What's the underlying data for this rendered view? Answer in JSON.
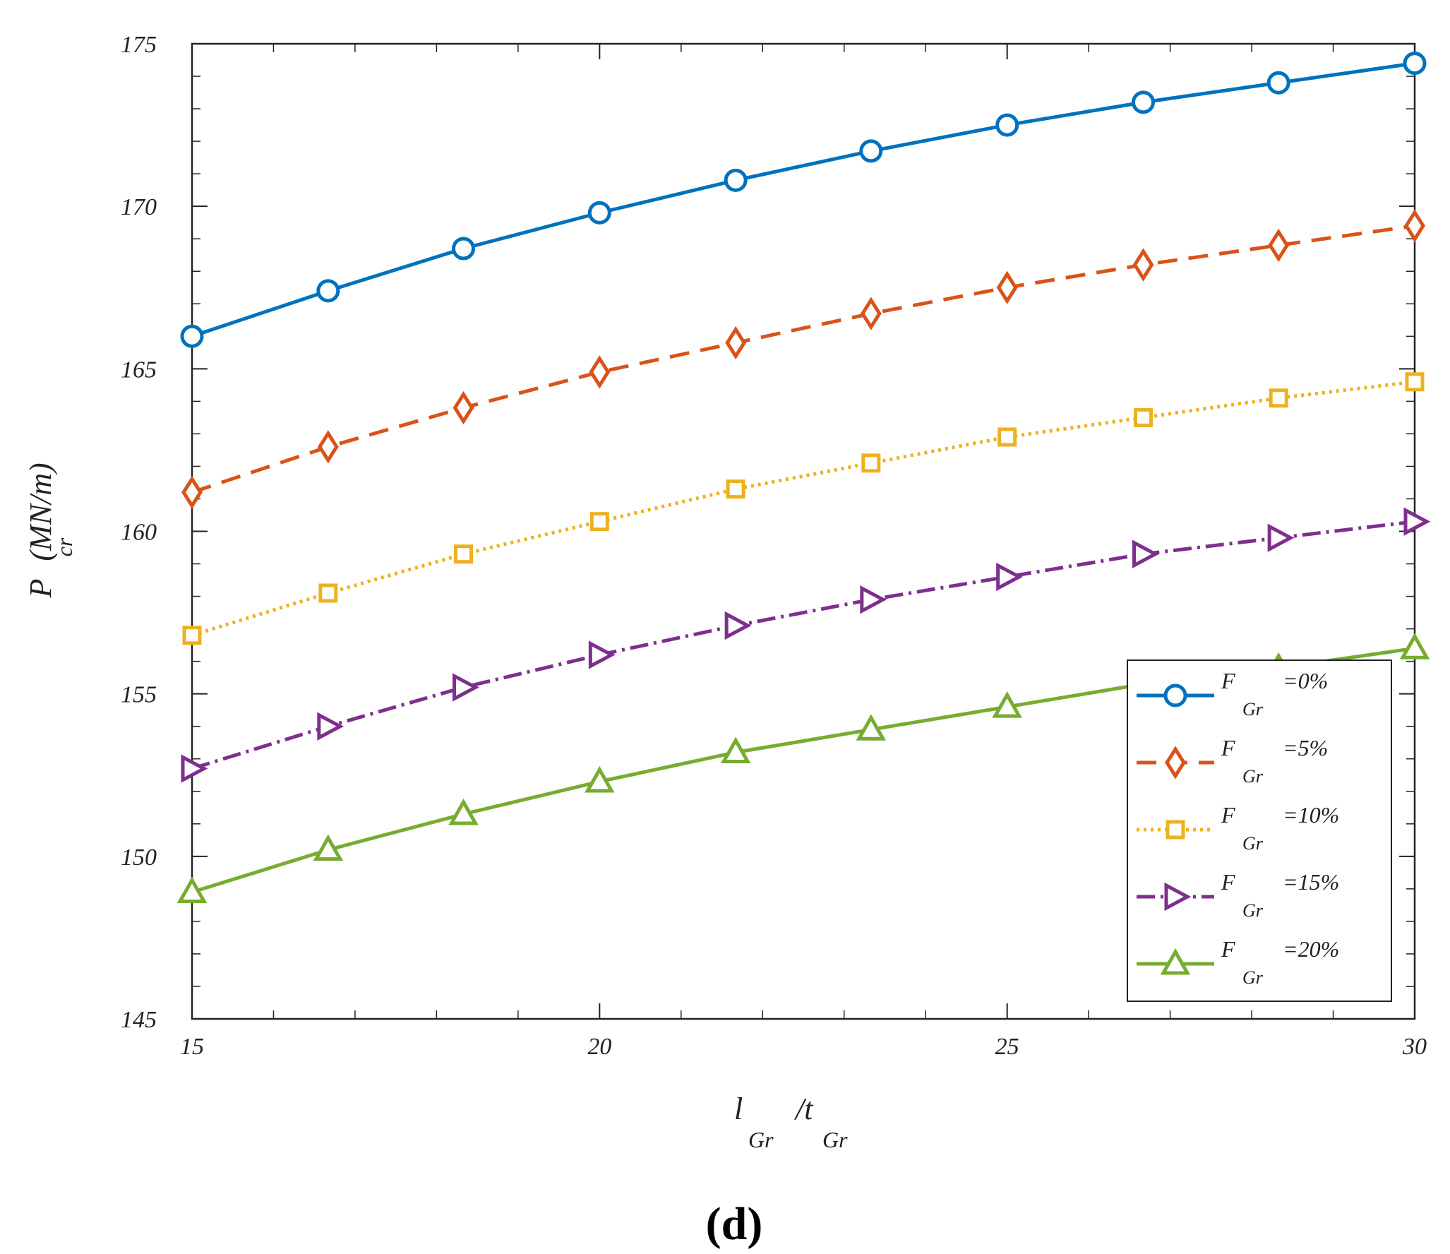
{
  "chart_data": {
    "type": "line",
    "title": "",
    "panel_label": "(d)",
    "xlabel": {
      "main1": "l",
      "sub1": "Gr",
      "main2": "/t",
      "sub2": "Gr"
    },
    "ylabel": {
      "main": "P",
      "sub": "cr",
      "unit": "(MN/m)"
    },
    "xlim": [
      15,
      30
    ],
    "ylim": [
      145,
      175
    ],
    "xticks": [
      15,
      20,
      25,
      30
    ],
    "yticks": [
      145,
      150,
      155,
      160,
      165,
      170,
      175
    ],
    "x": [
      15,
      16.67,
      18.33,
      20,
      21.67,
      23.33,
      25,
      26.67,
      28.33,
      30
    ],
    "legend_position": "lower-right",
    "series": [
      {
        "name": "F_Gr=0%",
        "legend_main": "F",
        "legend_sub": "Gr",
        "legend_value": "=0%",
        "color": "#0072BD",
        "marker": "circle",
        "dash": "",
        "values": [
          166.0,
          167.4,
          168.7,
          169.8,
          170.8,
          171.7,
          172.5,
          173.2,
          173.8,
          174.4
        ]
      },
      {
        "name": "F_Gr=5%",
        "legend_main": "F",
        "legend_sub": "Gr",
        "legend_value": "=5%",
        "color": "#D95319",
        "marker": "diamond",
        "dash": "28,16",
        "values": [
          161.2,
          162.6,
          163.8,
          164.9,
          165.8,
          166.7,
          167.5,
          168.2,
          168.8,
          169.4
        ]
      },
      {
        "name": "F_Gr=10%",
        "legend_main": "F",
        "legend_sub": "Gr",
        "legend_value": "=10%",
        "color": "#EDB120",
        "marker": "square",
        "dash": "4,6",
        "values": [
          156.8,
          158.1,
          159.3,
          160.3,
          161.3,
          162.1,
          162.9,
          163.5,
          164.1,
          164.6
        ]
      },
      {
        "name": "F_Gr=15%",
        "legend_main": "F",
        "legend_sub": "Gr",
        "legend_value": "=15%",
        "color": "#7E2F8E",
        "marker": "triangle-right",
        "dash": "26,8,4,8",
        "values": [
          152.7,
          154.0,
          155.2,
          156.2,
          157.1,
          157.9,
          158.6,
          159.3,
          159.8,
          160.3
        ]
      },
      {
        "name": "F_Gr=20%",
        "legend_main": "F",
        "legend_sub": "Gr",
        "legend_value": "=20%",
        "color": "#77AC30",
        "marker": "triangle-up",
        "dash": "",
        "values": [
          148.9,
          150.2,
          151.3,
          152.3,
          153.2,
          153.9,
          154.6,
          155.3,
          155.8,
          156.4
        ]
      }
    ]
  }
}
